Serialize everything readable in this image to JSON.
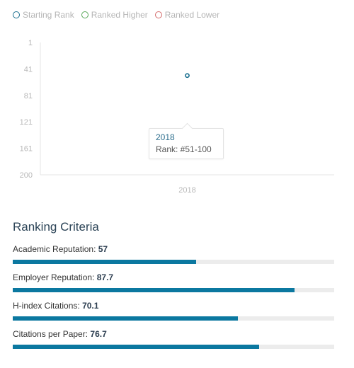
{
  "chart_data": {
    "type": "scatter",
    "legend": [
      {
        "label": "Starting Rank",
        "color": "#1a6f8f"
      },
      {
        "label": "Ranked Higher",
        "color": "#59a859"
      },
      {
        "label": "Ranked Lower",
        "color": "#d46a6a"
      }
    ],
    "legend_position": "top-left",
    "y_ticks": [
      "1",
      "41",
      "81",
      "121",
      "161",
      "200"
    ],
    "y_reversed": true,
    "ylim": [
      1,
      200
    ],
    "x_categories": [
      "2018"
    ],
    "points": [
      {
        "x": "2018",
        "y": 51,
        "series": "Starting Rank"
      }
    ],
    "grid": false,
    "tooltip": {
      "year": "2018",
      "rank_label": "Rank: #51-100"
    }
  },
  "criteria": {
    "title": "Ranking Criteria",
    "items": [
      {
        "label": "Academic Reputation:",
        "value": "57",
        "score": 57
      },
      {
        "label": "Employer Reputation:",
        "value": "87.7",
        "score": 87.7
      },
      {
        "label": "H-index Citations:",
        "value": "70.1",
        "score": 70.1
      },
      {
        "label": "Citations per Paper:",
        "value": "76.7",
        "score": 76.7
      }
    ]
  },
  "colors": {
    "bar_fill": "#0b78a0",
    "bar_track": "#ececec",
    "axis": "#e6e6e6",
    "tick_text": "#b8b8b8",
    "point": "#1a6f8f"
  }
}
